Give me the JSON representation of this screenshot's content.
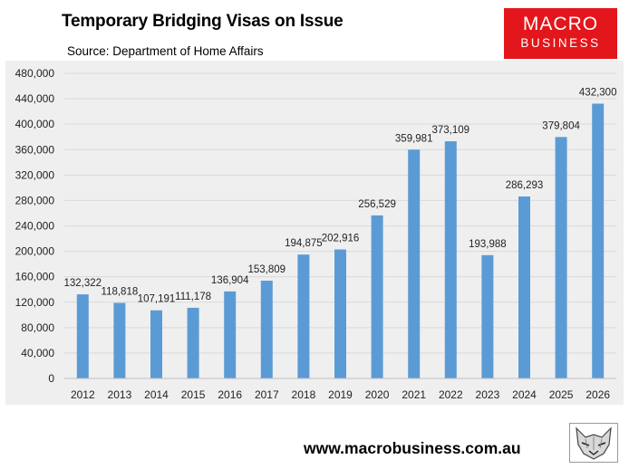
{
  "header": {
    "title": "Temporary Bridging Visas on Issue",
    "subtitle": "Source: Department of Home Affairs"
  },
  "logo": {
    "line1": "MACRO",
    "line2": "BUSINESS",
    "color": "#e3161b"
  },
  "footer": {
    "url": "www.macrobusiness.com.au"
  },
  "mascot": {
    "icon": "wolf-icon"
  },
  "chart_data": {
    "type": "bar",
    "categories": [
      "2012",
      "2013",
      "2014",
      "2015",
      "2016",
      "2017",
      "2018",
      "2019",
      "2020",
      "2021",
      "2022",
      "2023",
      "2024",
      "2025",
      "2026"
    ],
    "values": [
      132322,
      118818,
      107191,
      111178,
      136904,
      153809,
      194875,
      202916,
      256529,
      359981,
      373109,
      193988,
      286293,
      379804,
      432300
    ],
    "value_labels": [
      "132,322",
      "118,818",
      "107,191",
      "111,178",
      "136,904",
      "153,809",
      "194,875",
      "202,916",
      "256,529",
      "359,981",
      "373,109",
      "193,988",
      "286,293",
      "379,804",
      "432,300"
    ],
    "ylim": [
      0,
      480000
    ],
    "yticks": [
      0,
      40000,
      80000,
      120000,
      160000,
      200000,
      240000,
      280000,
      320000,
      360000,
      400000,
      440000,
      480000
    ],
    "ytick_labels": [
      "0",
      "40,000",
      "80,000",
      "120,000",
      "160,000",
      "200,000",
      "240,000",
      "280,000",
      "320,000",
      "360,000",
      "400,000",
      "440,000",
      "480,000"
    ],
    "bar_color": "#5b9bd5",
    "grid": true,
    "legend": "none"
  }
}
